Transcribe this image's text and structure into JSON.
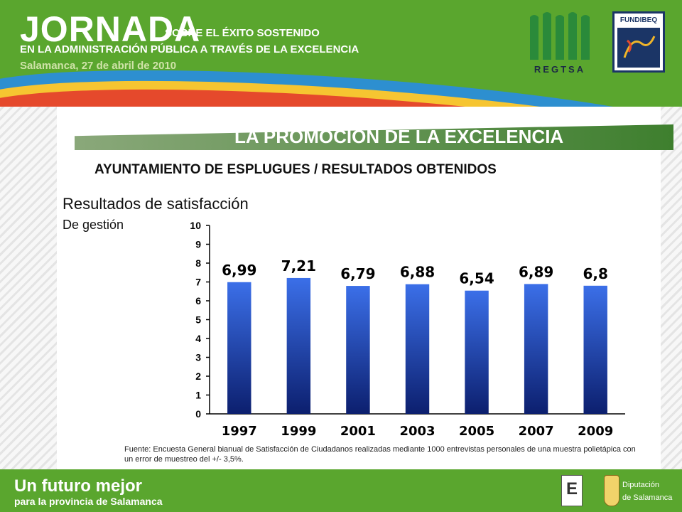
{
  "header": {
    "title": "JORNADA",
    "subtitle_line1": "SOBRE EL ÉXITO SOSTENIDO",
    "subtitle_line2": "EN LA ADMINISTRACIÓN PÚBLICA A TRAVÉS DE LA EXCELENCIA",
    "date": "Salamanca, 27 de abril de 2010",
    "logo_regtsa": "REGTSA",
    "logo_fundibeq": "FUNDIBEQ"
  },
  "section": {
    "title": "LA PROMOCIÓN DE LA EXCELENCIA",
    "subtitle": "AYUNTAMIENTO DE ESPLUGUES / RESULTADOS OBTENIDOS",
    "results_title": "Resultados de satisfacción",
    "results_subtitle": "De gestión"
  },
  "chart_data": {
    "type": "bar",
    "categories": [
      "1997",
      "1999",
      "2001",
      "2003",
      "2005",
      "2007",
      "2009"
    ],
    "values": [
      6.99,
      7.21,
      6.79,
      6.88,
      6.54,
      6.89,
      6.8
    ],
    "data_labels": [
      "6,99",
      "7,21",
      "6,79",
      "6,88",
      "6,54",
      "6,89",
      "6,8"
    ],
    "ylim": [
      0,
      10
    ],
    "yticks": [
      0,
      1,
      2,
      3,
      4,
      5,
      6,
      7,
      8,
      9,
      10
    ],
    "bar_color_top": "#3b6fe8",
    "bar_color_bottom": "#0c1f6e",
    "grid": false,
    "legend": "none"
  },
  "source_note": "Fuente: Encuesta General bianual de Satisfacción de Ciudadanos realizadas mediante 1000 entrevistas personales de una muestra polietápica con un error de muestreo del +/- 3,5%.",
  "footer": {
    "slogan_line1": "Un futuro mejor",
    "slogan_line2": "para la provincia de Salamanca",
    "logo_e": "E",
    "diputacion_line1": "Diputación",
    "diputacion_line2": "de Salamanca"
  },
  "colors": {
    "brand_green": "#5aa62e",
    "stripe_blue": "#2d8fd0",
    "stripe_yellow": "#f6c531",
    "stripe_red": "#e5492c"
  }
}
